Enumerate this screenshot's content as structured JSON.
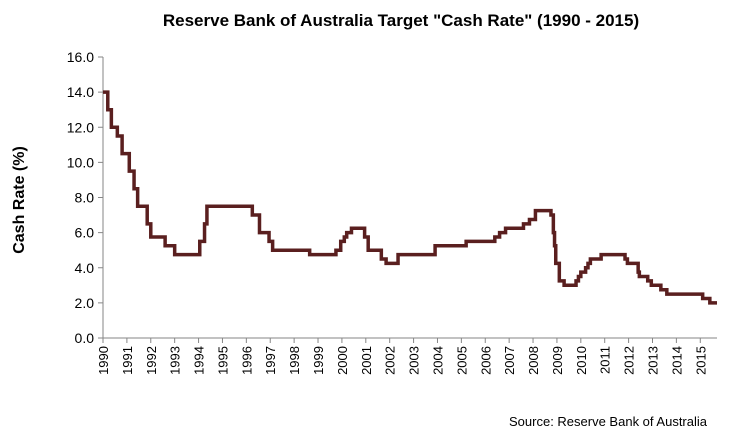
{
  "chart_data": {
    "type": "line",
    "title": "Reserve Bank of Australia Target \"Cash Rate\" (1990 - 2015)",
    "ylabel": "Cash Rate (%)",
    "xlabel": "",
    "source": "Source: Reserve Bank of Australia",
    "ylim": [
      0,
      16
    ],
    "xlim": [
      1990,
      2015.7
    ],
    "y_ticks": [
      "0.0",
      "2.0",
      "4.0",
      "6.0",
      "8.0",
      "10.0",
      "12.0",
      "14.0",
      "16.0"
    ],
    "x_ticks": [
      "1990",
      "1991",
      "1992",
      "1993",
      "1994",
      "1995",
      "1996",
      "1997",
      "1998",
      "1999",
      "2000",
      "2001",
      "2002",
      "2003",
      "2004",
      "2005",
      "2006",
      "2007",
      "2008",
      "2009",
      "2010",
      "2011",
      "2012",
      "2013",
      "2014",
      "2015"
    ],
    "grid": false,
    "legend": "none",
    "line_color": "#5a1f1f",
    "step": true,
    "series": [
      {
        "points": [
          [
            1990.0,
            14.0
          ],
          [
            1990.2,
            14.0
          ],
          [
            1990.2,
            13.0
          ],
          [
            1990.35,
            13.0
          ],
          [
            1990.35,
            12.0
          ],
          [
            1990.6,
            12.0
          ],
          [
            1990.6,
            11.5
          ],
          [
            1990.8,
            11.5
          ],
          [
            1990.8,
            10.5
          ],
          [
            1991.1,
            10.5
          ],
          [
            1991.1,
            9.5
          ],
          [
            1991.3,
            9.5
          ],
          [
            1991.3,
            8.5
          ],
          [
            1991.45,
            8.5
          ],
          [
            1991.45,
            7.5
          ],
          [
            1991.85,
            7.5
          ],
          [
            1991.85,
            6.5
          ],
          [
            1992.0,
            6.5
          ],
          [
            1992.0,
            5.75
          ],
          [
            1992.6,
            5.75
          ],
          [
            1992.6,
            5.25
          ],
          [
            1993.0,
            5.25
          ],
          [
            1993.0,
            4.75
          ],
          [
            1994.05,
            4.75
          ],
          [
            1994.05,
            5.5
          ],
          [
            1994.25,
            5.5
          ],
          [
            1994.25,
            6.5
          ],
          [
            1994.35,
            6.5
          ],
          [
            1994.35,
            7.5
          ],
          [
            1996.25,
            7.5
          ],
          [
            1996.25,
            7.0
          ],
          [
            1996.55,
            7.0
          ],
          [
            1996.55,
            6.0
          ],
          [
            1996.95,
            6.0
          ],
          [
            1996.95,
            5.5
          ],
          [
            1997.1,
            5.5
          ],
          [
            1997.1,
            5.0
          ],
          [
            1998.65,
            5.0
          ],
          [
            1998.65,
            4.75
          ],
          [
            1999.75,
            4.75
          ],
          [
            1999.75,
            5.0
          ],
          [
            1999.95,
            5.0
          ],
          [
            1999.95,
            5.5
          ],
          [
            2000.1,
            5.5
          ],
          [
            2000.1,
            5.75
          ],
          [
            2000.2,
            5.75
          ],
          [
            2000.2,
            6.0
          ],
          [
            2000.4,
            6.0
          ],
          [
            2000.4,
            6.25
          ],
          [
            2000.95,
            6.25
          ],
          [
            2000.95,
            5.75
          ],
          [
            2001.1,
            5.75
          ],
          [
            2001.1,
            5.0
          ],
          [
            2001.65,
            5.0
          ],
          [
            2001.65,
            4.5
          ],
          [
            2001.85,
            4.5
          ],
          [
            2001.85,
            4.25
          ],
          [
            2002.35,
            4.25
          ],
          [
            2002.35,
            4.75
          ],
          [
            2003.9,
            4.75
          ],
          [
            2003.9,
            5.25
          ],
          [
            2005.2,
            5.25
          ],
          [
            2005.2,
            5.5
          ],
          [
            2006.4,
            5.5
          ],
          [
            2006.4,
            5.75
          ],
          [
            2006.6,
            5.75
          ],
          [
            2006.6,
            6.0
          ],
          [
            2006.85,
            6.0
          ],
          [
            2006.85,
            6.25
          ],
          [
            2007.6,
            6.25
          ],
          [
            2007.6,
            6.5
          ],
          [
            2007.85,
            6.5
          ],
          [
            2007.85,
            6.75
          ],
          [
            2008.1,
            6.75
          ],
          [
            2008.1,
            7.25
          ],
          [
            2008.75,
            7.25
          ],
          [
            2008.75,
            7.0
          ],
          [
            2008.85,
            7.0
          ],
          [
            2008.85,
            6.0
          ],
          [
            2008.9,
            6.0
          ],
          [
            2008.9,
            5.25
          ],
          [
            2008.95,
            5.25
          ],
          [
            2008.95,
            4.25
          ],
          [
            2009.1,
            4.25
          ],
          [
            2009.1,
            3.25
          ],
          [
            2009.3,
            3.25
          ],
          [
            2009.3,
            3.0
          ],
          [
            2009.8,
            3.0
          ],
          [
            2009.8,
            3.25
          ],
          [
            2009.9,
            3.25
          ],
          [
            2009.9,
            3.5
          ],
          [
            2010.0,
            3.5
          ],
          [
            2010.0,
            3.75
          ],
          [
            2010.2,
            3.75
          ],
          [
            2010.2,
            4.0
          ],
          [
            2010.3,
            4.0
          ],
          [
            2010.3,
            4.25
          ],
          [
            2010.4,
            4.25
          ],
          [
            2010.4,
            4.5
          ],
          [
            2010.85,
            4.5
          ],
          [
            2010.85,
            4.75
          ],
          [
            2011.85,
            4.75
          ],
          [
            2011.85,
            4.5
          ],
          [
            2011.95,
            4.5
          ],
          [
            2011.95,
            4.25
          ],
          [
            2012.4,
            4.25
          ],
          [
            2012.4,
            3.75
          ],
          [
            2012.45,
            3.75
          ],
          [
            2012.45,
            3.5
          ],
          [
            2012.8,
            3.5
          ],
          [
            2012.8,
            3.25
          ],
          [
            2012.95,
            3.25
          ],
          [
            2012.95,
            3.0
          ],
          [
            2013.35,
            3.0
          ],
          [
            2013.35,
            2.75
          ],
          [
            2013.6,
            2.75
          ],
          [
            2013.6,
            2.5
          ],
          [
            2015.1,
            2.5
          ],
          [
            2015.1,
            2.25
          ],
          [
            2015.4,
            2.25
          ],
          [
            2015.4,
            2.0
          ],
          [
            2015.7,
            2.0
          ]
        ]
      }
    ]
  }
}
